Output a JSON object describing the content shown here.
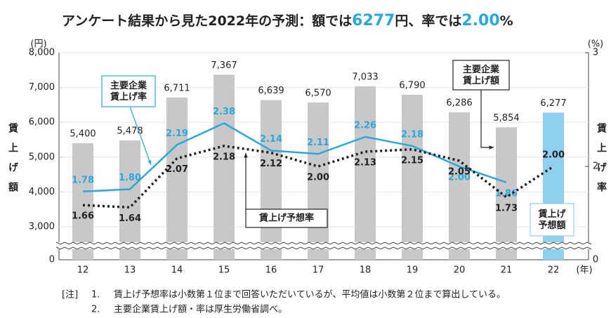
{
  "chart_data": {
    "type": "bar_line",
    "title": [
      "アンケート結果から見た2022年の予測：額では",
      "6277",
      "円、率では",
      "2.00",
      "%"
    ],
    "highlight_color": "#29a8e0",
    "categories": [
      "12",
      "13",
      "14",
      "15",
      "16",
      "17",
      "18",
      "19",
      "20",
      "21",
      "22"
    ],
    "x_unit": "(年)",
    "y_unit": "(円)",
    "y2_unit": "(%)",
    "ylabel": "賃上げ額",
    "y2label": "賃上げ率",
    "ylim": [
      0,
      8000
    ],
    "ybreak": [
      0,
      3000
    ],
    "yticks": [
      {
        "value": 0,
        "label": "0"
      },
      {
        "value": 3000,
        "label": "3,000"
      },
      {
        "value": 4000,
        "label": "4,000"
      },
      {
        "value": 5000,
        "label": "5,000"
      },
      {
        "value": 6000,
        "label": "6,000"
      },
      {
        "value": 7000,
        "label": "7,000"
      },
      {
        "value": 8000,
        "label": "8,000"
      }
    ],
    "y2lim": [
      0,
      3
    ],
    "y2break": [
      0,
      1.47
    ],
    "y2ticks": [
      0,
      2,
      3
    ],
    "grid": true,
    "bars": {
      "name": "主要企業\n賃上げ額",
      "forecast_name": "賃上げ\n予想額",
      "color": "#c8c8c8",
      "forecast_color": "#8fd0f0",
      "values": [
        5400,
        5478,
        6711,
        7367,
        6639,
        6570,
        7033,
        6790,
        6286,
        5854,
        6277
      ],
      "value_labels": [
        "5,400",
        "5,478",
        "6,711",
        "7,367",
        "6,639",
        "6,570",
        "7,033",
        "6,790",
        "6,286",
        "5,854",
        "6,277"
      ]
    },
    "series": [
      {
        "name": "主要企業\n賃上げ率",
        "color": "#29a8e0",
        "style": "solid",
        "axis": "y2",
        "values": [
          1.78,
          1.8,
          2.19,
          2.38,
          2.14,
          2.11,
          2.26,
          2.18,
          2.0,
          1.86,
          null
        ],
        "value_labels": [
          "1.78",
          "1.80",
          "2.19",
          "2.38",
          "2.14",
          "2.11",
          "2.26",
          "2.18",
          "2.00",
          "1.86",
          null
        ]
      },
      {
        "name": "賃上げ予想率",
        "color": "#222222",
        "style": "dotted",
        "axis": "y2",
        "values": [
          1.66,
          1.64,
          2.07,
          2.18,
          2.12,
          2.0,
          2.13,
          2.15,
          2.05,
          1.73,
          2.0
        ],
        "value_labels": [
          "1.66",
          "1.64",
          "2.07",
          "2.18",
          "2.12",
          "2.00",
          "2.13",
          "2.15",
          "2.05",
          "1.73",
          "2.00"
        ]
      }
    ],
    "notes": {
      "head": "[注]",
      "items": [
        {
          "num": "1.",
          "text": "賃上げ予想率は小数第１位まで回答いただいているが、平均値は小数第２位まで算出している。"
        },
        {
          "num": "2.",
          "text": "主要企業賃上げ額・率は厚生労働省調べ。"
        }
      ]
    }
  }
}
